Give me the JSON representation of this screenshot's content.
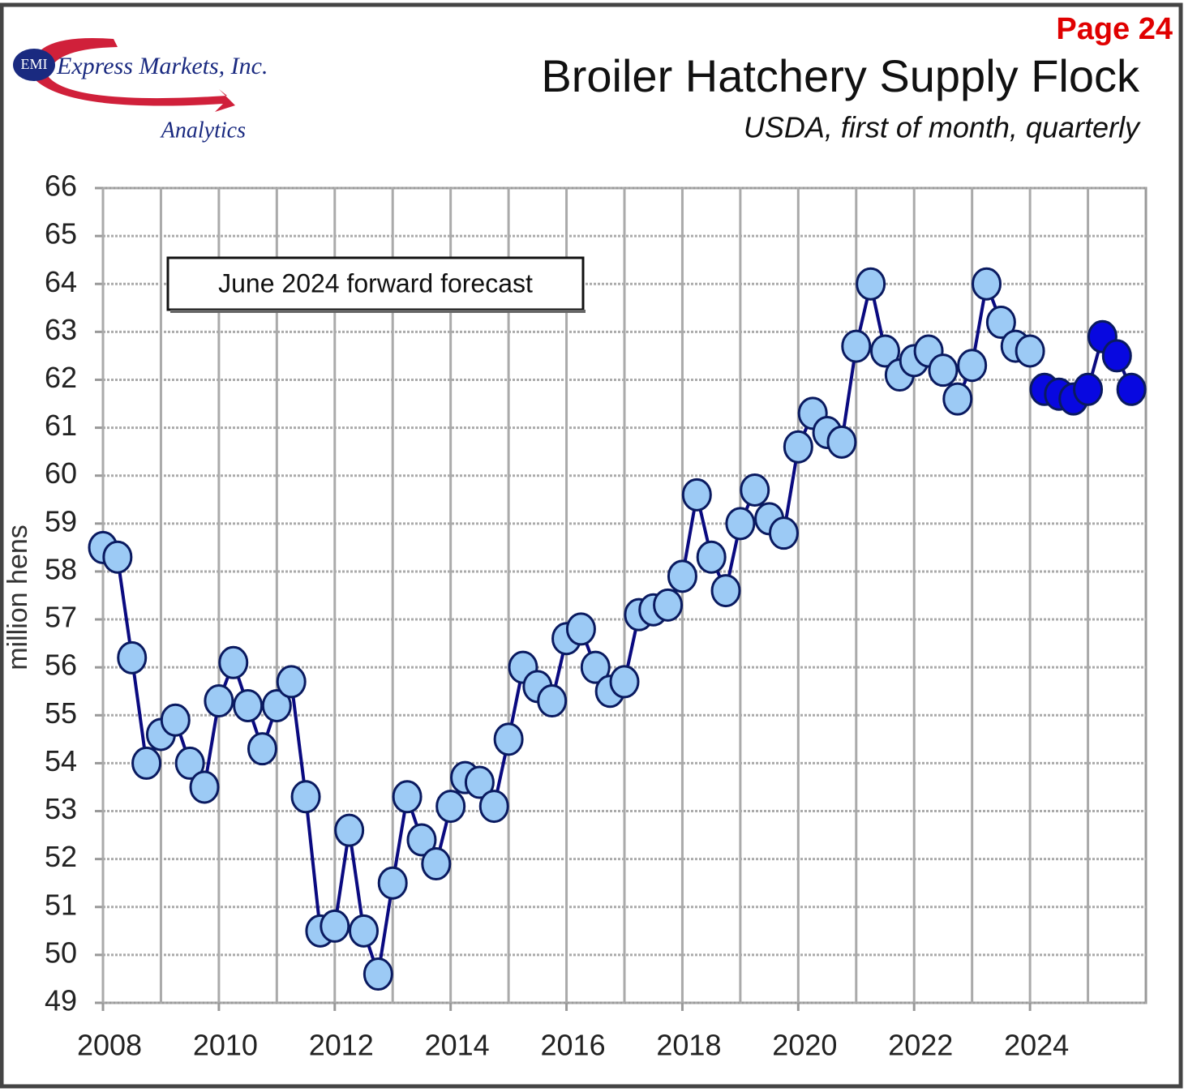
{
  "page_label": "Page 24",
  "logo": {
    "badge": "EMI",
    "name": "Express Markets, Inc.",
    "sub": "Analytics"
  },
  "chart_data": {
    "type": "line",
    "title": "Broiler Hatchery Supply Flock",
    "subtitle": "USDA, first of month, quarterly",
    "y_label": "million hens",
    "annotation": "June 2024 forward forecast",
    "line_color": "#0a0a80",
    "xlim": [
      2008,
      2026
    ],
    "xticks": [
      2008,
      2010,
      2012,
      2014,
      2016,
      2018,
      2020,
      2022,
      2024
    ],
    "x_minor_ticks": [
      2009,
      2011,
      2013,
      2015,
      2017,
      2019,
      2021,
      2023,
      2025
    ],
    "ylim": [
      49,
      66
    ],
    "yticks": [
      49,
      50,
      51,
      52,
      53,
      54,
      55,
      56,
      57,
      58,
      59,
      60,
      61,
      62,
      63,
      64,
      65,
      66
    ],
    "grid": true,
    "series": [
      {
        "color": "#9ccaf5",
        "x": [
          2008.0,
          2008.25,
          2008.5,
          2008.75,
          2009.0,
          2009.25,
          2009.5,
          2009.75,
          2010.0,
          2010.25,
          2010.5,
          2010.75,
          2011.0,
          2011.25,
          2011.5,
          2011.75,
          2012.0,
          2012.25,
          2012.5,
          2012.75,
          2013.0,
          2013.25,
          2013.5,
          2013.75,
          2014.0,
          2014.25,
          2014.5,
          2014.75,
          2015.0,
          2015.25,
          2015.5,
          2015.75,
          2016.0,
          2016.25,
          2016.5,
          2016.75,
          2017.0,
          2017.25,
          2017.5,
          2017.75,
          2018.0,
          2018.25,
          2018.5,
          2018.75,
          2019.0,
          2019.25,
          2019.5,
          2019.75,
          2020.0,
          2020.25,
          2020.5,
          2020.75,
          2021.0,
          2021.25,
          2021.5,
          2021.75,
          2022.0,
          2022.25,
          2022.5,
          2022.75,
          2023.0,
          2023.25,
          2023.5,
          2023.75,
          2024.0
        ],
        "values": [
          58.5,
          58.3,
          56.2,
          54.0,
          54.6,
          54.9,
          54.0,
          53.5,
          55.3,
          56.1,
          55.2,
          54.3,
          55.2,
          55.7,
          53.3,
          50.5,
          50.6,
          52.6,
          50.5,
          49.6,
          51.5,
          53.3,
          52.4,
          51.9,
          53.1,
          53.7,
          53.6,
          53.1,
          54.5,
          56.0,
          55.6,
          55.3,
          56.6,
          56.8,
          56.0,
          55.5,
          55.7,
          57.1,
          57.2,
          57.3,
          57.9,
          59.6,
          58.3,
          57.6,
          59.0,
          59.7,
          59.1,
          58.8,
          60.6,
          61.3,
          60.9,
          60.7,
          62.7,
          64.0,
          62.6,
          62.1,
          62.4,
          62.6,
          62.2,
          61.6,
          62.3,
          64.0,
          63.2,
          62.7,
          62.6
        ]
      },
      {
        "color": "#0808e0",
        "x": [
          2024.25,
          2024.5,
          2024.75,
          2025.0,
          2025.25,
          2025.5,
          2025.75
        ],
        "values": [
          61.8,
          61.7,
          61.6,
          61.8,
          62.9,
          62.5,
          61.8
        ]
      }
    ]
  }
}
